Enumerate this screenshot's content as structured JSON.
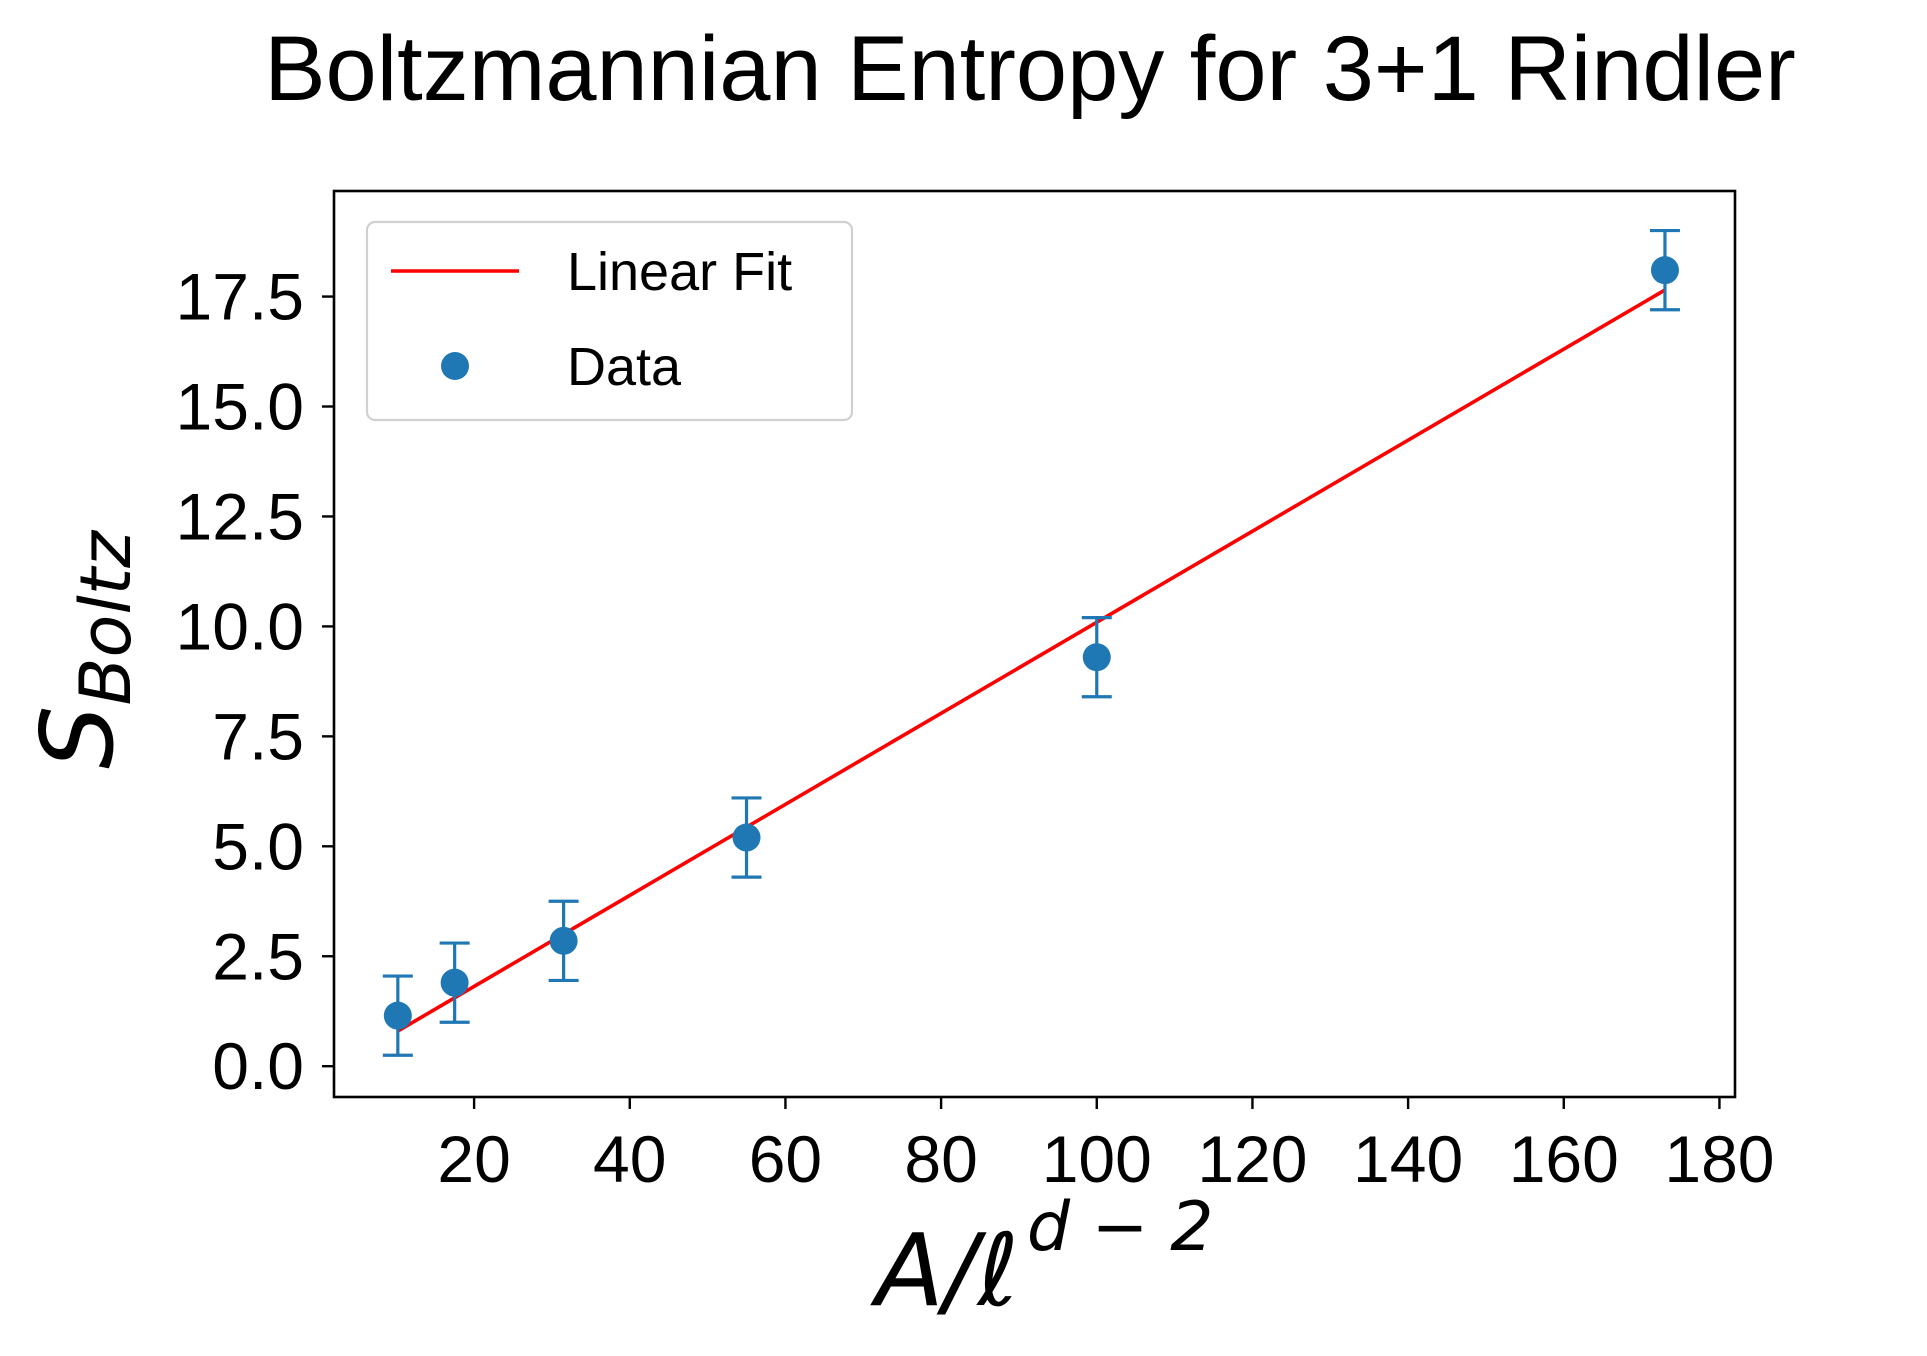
{
  "chart_data": {
    "type": "scatter",
    "title": "Boltzmannian Entropy for 3+1 Rindler",
    "xlabel": {
      "main": "A/ℓ",
      "sup": "d − 2"
    },
    "ylabel": {
      "main": "S",
      "sub": "Boltz"
    },
    "xlim": [
      2,
      182
    ],
    "ylim": [
      -0.7,
      19.9
    ],
    "xticks": [
      20,
      40,
      60,
      80,
      100,
      120,
      140,
      160,
      180
    ],
    "yticks": [
      0.0,
      2.5,
      5.0,
      7.5,
      10.0,
      12.5,
      15.0,
      17.5
    ],
    "xtick_labels": [
      "20",
      "40",
      "60",
      "80",
      "100",
      "120",
      "140",
      "160",
      "180"
    ],
    "ytick_labels": [
      "0.0",
      "2.5",
      "5.0",
      "7.5",
      "10.0",
      "12.5",
      "15.0",
      "17.5"
    ],
    "grid": false,
    "legend_position": "top-left",
    "series": [
      {
        "name": "Data",
        "kind": "scatter-errorbar",
        "color": "#1f77b4",
        "points": [
          {
            "x": 10.2,
            "y": 1.15,
            "yerr": 0.9
          },
          {
            "x": 17.5,
            "y": 1.9,
            "yerr": 0.9
          },
          {
            "x": 31.5,
            "y": 2.85,
            "yerr": 0.9
          },
          {
            "x": 55.0,
            "y": 5.2,
            "yerr": 0.9
          },
          {
            "x": 100.0,
            "y": 9.3,
            "yerr": 0.9
          },
          {
            "x": 173.0,
            "y": 18.1,
            "yerr": 0.9
          }
        ]
      },
      {
        "name": "Linear Fit",
        "kind": "line",
        "color": "#ff0000",
        "points": [
          {
            "x": 10.2,
            "y": 0.8
          },
          {
            "x": 173.0,
            "y": 17.65
          }
        ]
      }
    ],
    "legend": [
      {
        "label": "Linear Fit",
        "marker": "line",
        "color": "#ff0000"
      },
      {
        "label": "Data",
        "marker": "dot",
        "color": "#1f77b4"
      }
    ]
  }
}
